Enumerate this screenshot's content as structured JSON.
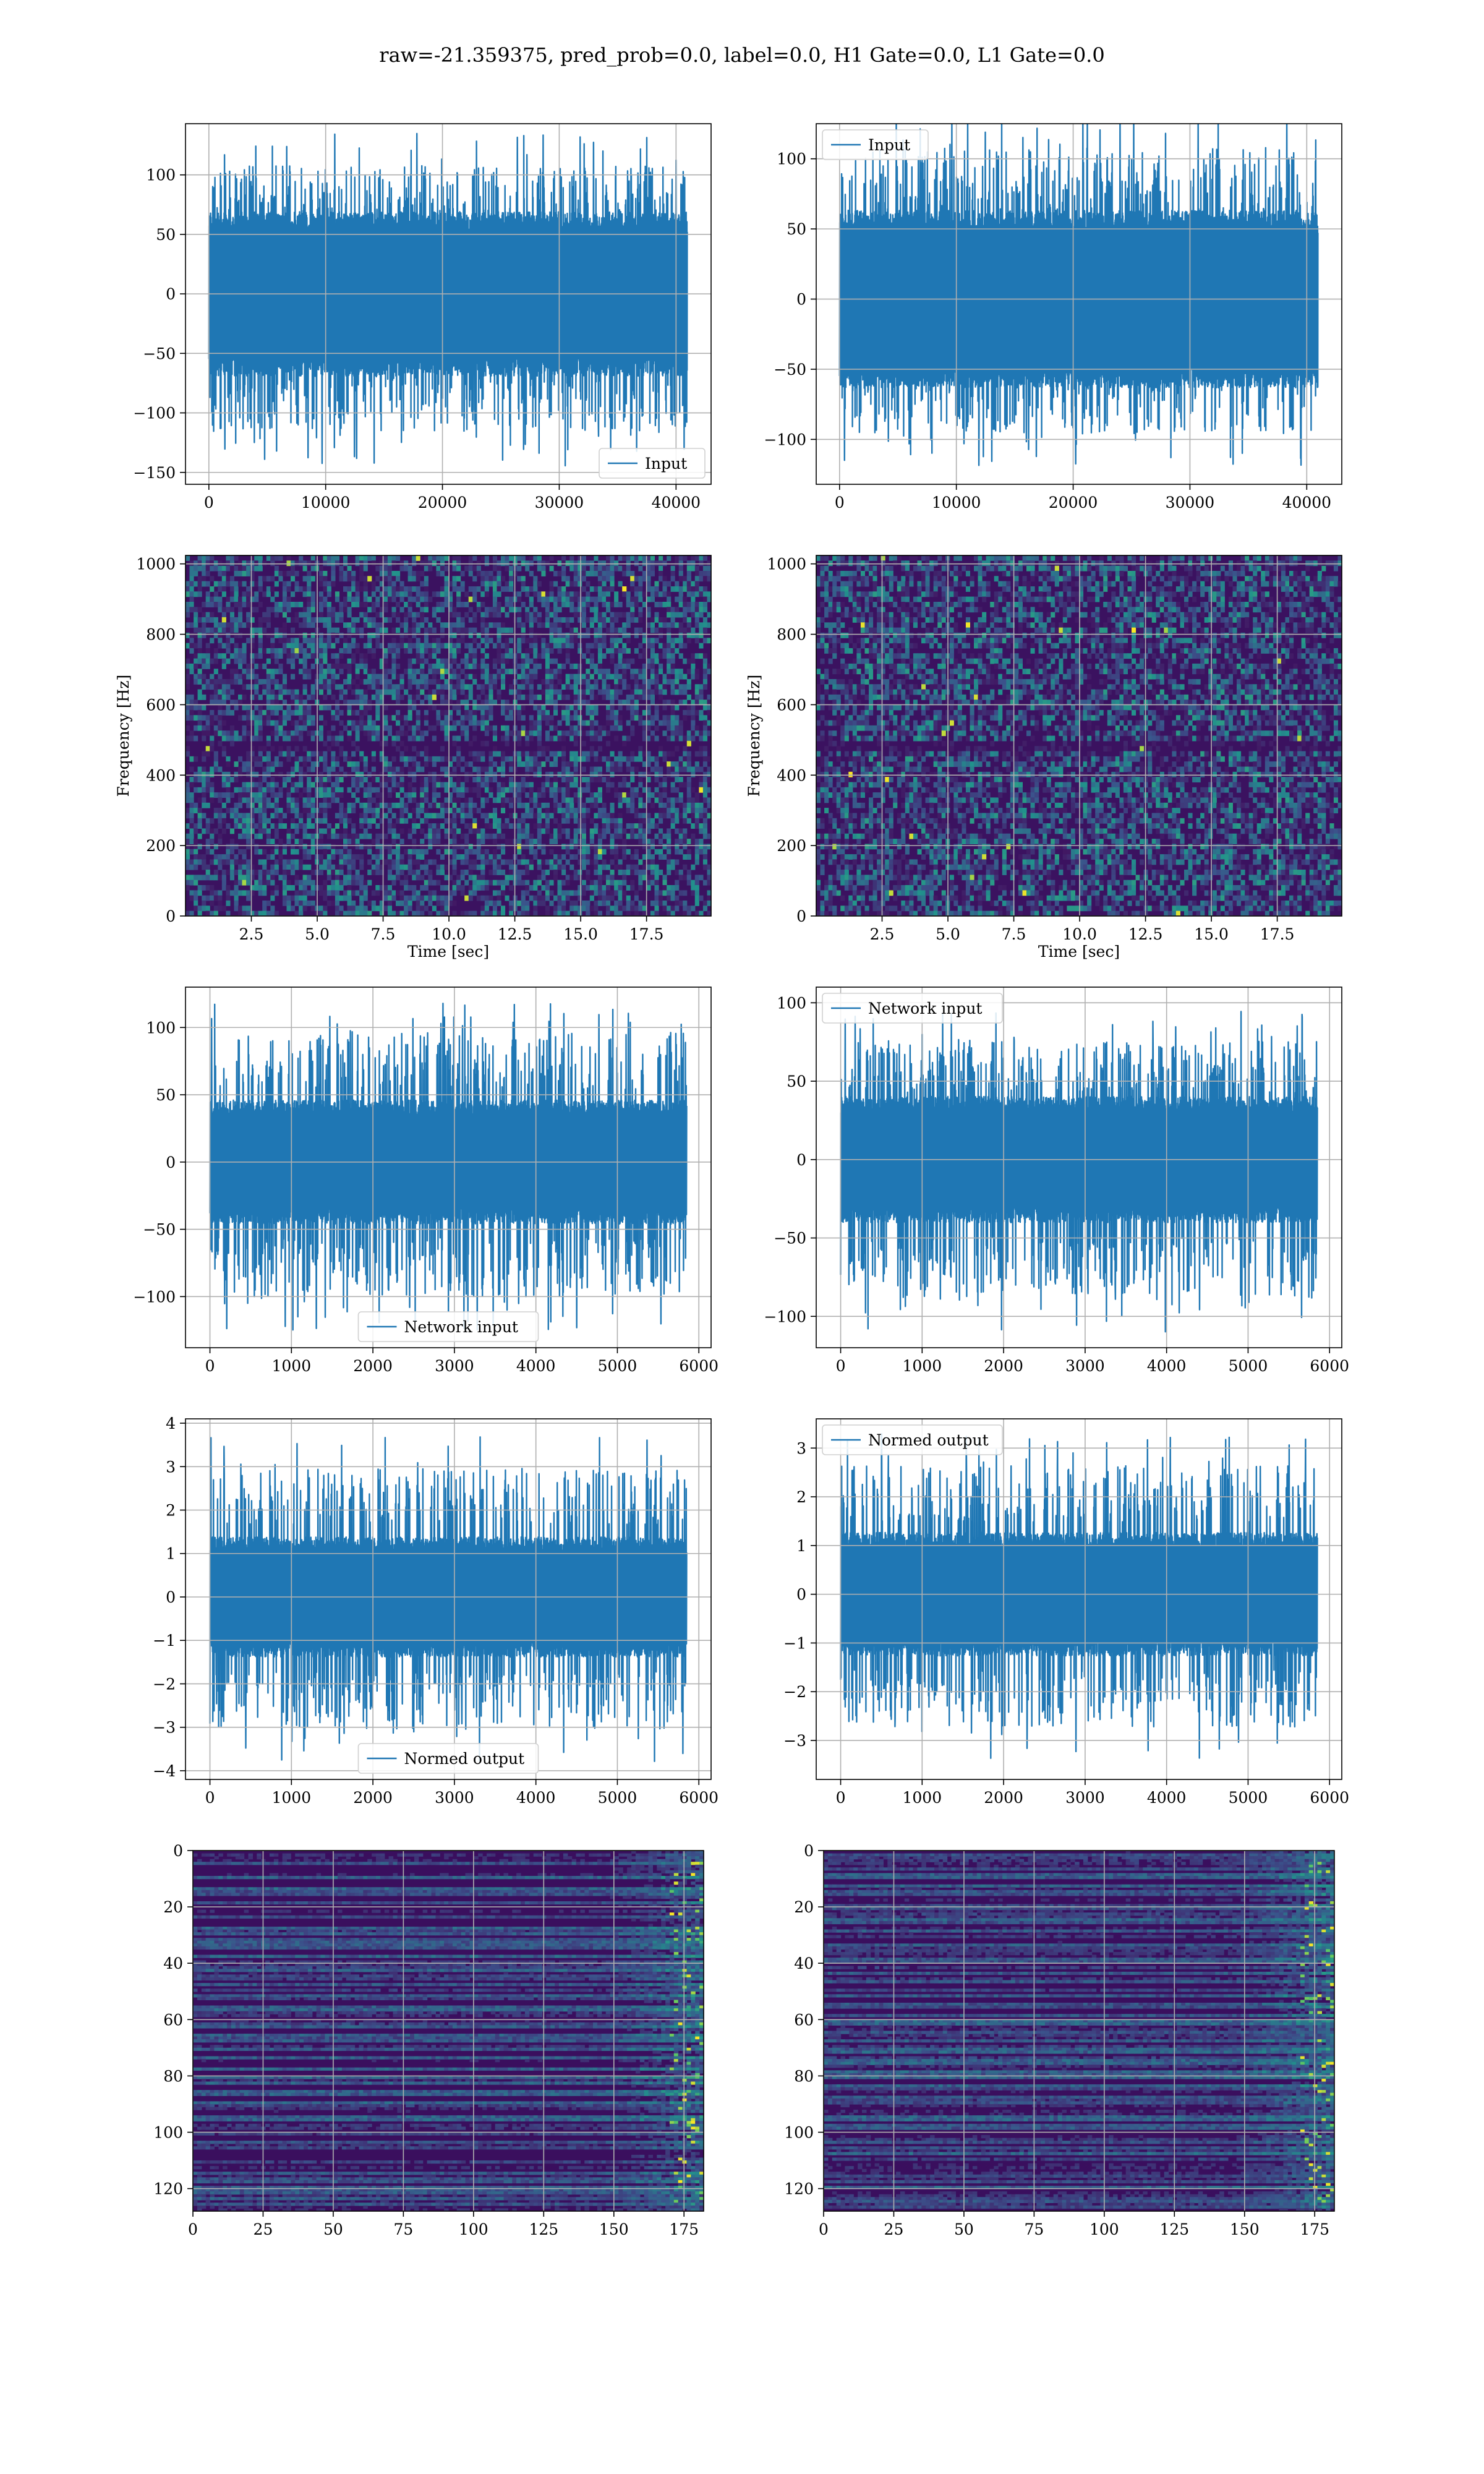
{
  "suptitle": "raw=-21.359375, pred_prob=0.0, label=0.0, H1 Gate=0.0, L1 Gate=0.0",
  "colors": {
    "series": "#1f77b4",
    "grid": "#b0b0b0",
    "viridis_dark": "#440154",
    "viridis_mid": "#21918c",
    "viridis_bright": "#fde725"
  },
  "chart_data": [
    {
      "id": "ts_h1_input",
      "type": "line",
      "series": [
        {
          "name": "Input",
          "n_points": 40960,
          "amplitude_range": [
            -145,
            135
          ],
          "core_band": [
            -60,
            60
          ]
        }
      ],
      "xlim": [
        -2000,
        43000
      ],
      "ylim": [
        -160,
        143
      ],
      "xticks": [
        0,
        10000,
        20000,
        30000,
        40000
      ],
      "yticks": [
        -150,
        -100,
        -50,
        0,
        50,
        100
      ],
      "ytick_labels": [
        "−150",
        "−100",
        "−50",
        "0",
        "50",
        "100"
      ],
      "legend": "lower right",
      "grid": true
    },
    {
      "id": "ts_l1_input",
      "type": "line",
      "series": [
        {
          "name": "Input",
          "n_points": 40960,
          "amplitude_range": [
            -120,
            135
          ],
          "core_band": [
            -55,
            55
          ]
        }
      ],
      "xlim": [
        -2000,
        43000
      ],
      "ylim": [
        -132,
        125
      ],
      "xticks": [
        0,
        10000,
        20000,
        30000,
        40000
      ],
      "yticks": [
        -100,
        -50,
        0,
        50,
        100
      ],
      "ytick_labels": [
        "−100",
        "−50",
        "0",
        "50",
        "100"
      ],
      "legend": "upper left",
      "grid": true
    },
    {
      "id": "spec_h1",
      "type": "heatmap",
      "xlabel": "Time [sec]",
      "ylabel": "Frequency [Hz]",
      "xlim": [
        0,
        19.95
      ],
      "ylim": [
        0,
        1024
      ],
      "xticks": [
        2.5,
        5.0,
        7.5,
        10.0,
        12.5,
        15.0,
        17.5
      ],
      "xtick_labels": [
        "2.5",
        "5.0",
        "7.5",
        "10.0",
        "12.5",
        "15.0",
        "17.5"
      ],
      "yticks": [
        0,
        200,
        400,
        600,
        800,
        1000
      ],
      "colormap": "viridis",
      "grid": true
    },
    {
      "id": "spec_l1",
      "type": "heatmap",
      "xlabel": "Time [sec]",
      "ylabel": "Frequency [Hz]",
      "xlim": [
        0,
        19.95
      ],
      "ylim": [
        0,
        1024
      ],
      "xticks": [
        2.5,
        5.0,
        7.5,
        10.0,
        12.5,
        15.0,
        17.5
      ],
      "xtick_labels": [
        "2.5",
        "5.0",
        "7.5",
        "10.0",
        "12.5",
        "15.0",
        "17.5"
      ],
      "yticks": [
        0,
        200,
        400,
        600,
        800,
        1000
      ],
      "colormap": "viridis",
      "grid": true
    },
    {
      "id": "ts_h1_network",
      "type": "line",
      "series": [
        {
          "name": "Network input",
          "n_points": 5851,
          "amplitude_range": [
            -125,
            120
          ],
          "core_band": [
            -40,
            40
          ]
        }
      ],
      "xlim": [
        -300,
        6150
      ],
      "ylim": [
        -138,
        130
      ],
      "xticks": [
        0,
        1000,
        2000,
        3000,
        4000,
        5000,
        6000
      ],
      "yticks": [
        -100,
        -50,
        0,
        50,
        100
      ],
      "ytick_labels": [
        "−100",
        "−50",
        "0",
        "50",
        "100"
      ],
      "legend": "lower center",
      "grid": true
    },
    {
      "id": "ts_l1_network",
      "type": "line",
      "series": [
        {
          "name": "Network input",
          "n_points": 5851,
          "amplitude_range": [
            -110,
            95
          ],
          "core_band": [
            -35,
            35
          ]
        }
      ],
      "xlim": [
        -300,
        6150
      ],
      "ylim": [
        -120,
        110
      ],
      "xticks": [
        0,
        1000,
        2000,
        3000,
        4000,
        5000,
        6000
      ],
      "yticks": [
        -100,
        -50,
        0,
        50,
        100
      ],
      "ytick_labels": [
        "−100",
        "−50",
        "0",
        "50",
        "100"
      ],
      "legend": "upper left",
      "grid": true
    },
    {
      "id": "ts_h1_normed",
      "type": "line",
      "series": [
        {
          "name": "Normed output",
          "n_points": 5851,
          "amplitude_range": [
            -3.8,
            3.7
          ],
          "core_band": [
            -1.2,
            1.2
          ]
        }
      ],
      "xlim": [
        -300,
        6150
      ],
      "ylim": [
        -4.2,
        4.1
      ],
      "xticks": [
        0,
        1000,
        2000,
        3000,
        4000,
        5000,
        6000
      ],
      "yticks": [
        -4,
        -3,
        -2,
        -1,
        0,
        1,
        2,
        3,
        4
      ],
      "ytick_labels": [
        "−4",
        "−3",
        "−2",
        "−1",
        "0",
        "1",
        "2",
        "3",
        "4"
      ],
      "legend": "lower center",
      "grid": true
    },
    {
      "id": "ts_l1_normed",
      "type": "line",
      "series": [
        {
          "name": "Normed output",
          "n_points": 5851,
          "amplitude_range": [
            -3.4,
            3.3
          ],
          "core_band": [
            -1.1,
            1.1
          ]
        }
      ],
      "xlim": [
        -300,
        6150
      ],
      "ylim": [
        -3.8,
        3.6
      ],
      "xticks": [
        0,
        1000,
        2000,
        3000,
        4000,
        5000,
        6000
      ],
      "yticks": [
        -3,
        -2,
        -1,
        0,
        1,
        2,
        3
      ],
      "ytick_labels": [
        "−3",
        "−2",
        "−1",
        "0",
        "1",
        "2",
        "3"
      ],
      "legend": "upper left",
      "grid": true
    },
    {
      "id": "feat_h1",
      "type": "heatmap",
      "xlim": [
        0,
        182
      ],
      "ylim": [
        128,
        0
      ],
      "xticks": [
        0,
        25,
        50,
        75,
        100,
        125,
        150,
        175
      ],
      "yticks": [
        0,
        20,
        40,
        60,
        80,
        100,
        120
      ],
      "colormap": "viridis",
      "grid": true
    },
    {
      "id": "feat_l1",
      "type": "heatmap",
      "xlim": [
        0,
        182
      ],
      "ylim": [
        128,
        0
      ],
      "xticks": [
        0,
        25,
        50,
        75,
        100,
        125,
        150,
        175
      ],
      "yticks": [
        0,
        20,
        40,
        60,
        80,
        100,
        120
      ],
      "colormap": "viridis",
      "grid": true
    }
  ]
}
